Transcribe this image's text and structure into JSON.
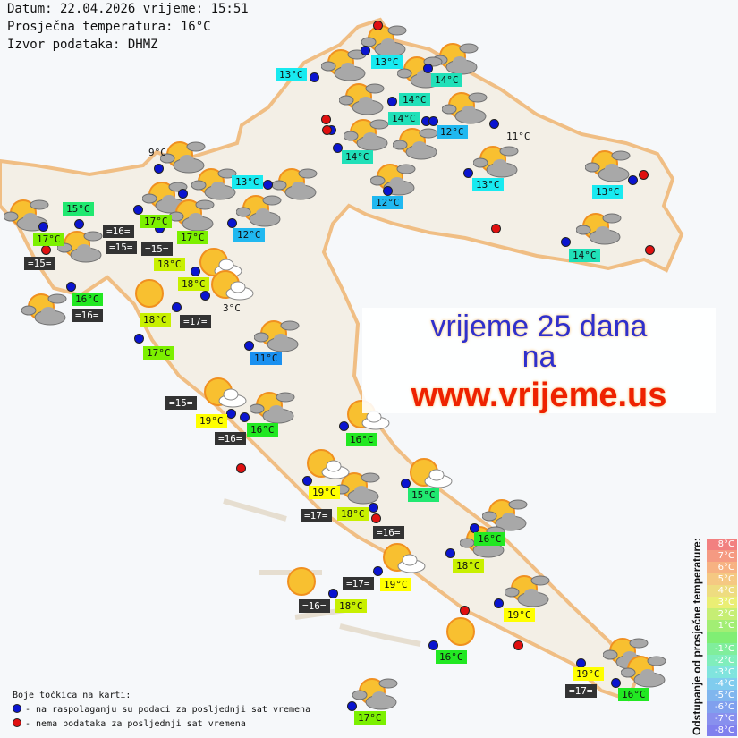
{
  "header": {
    "date_line": "Datum: 22.04.2026 vrijeme: 15:51",
    "avg_temp_line": "Prosječna temperatura: 16°C",
    "source_line": "Izvor podataka: DHMZ"
  },
  "promo": {
    "line1": "vrijeme 25 dana",
    "line2": "na",
    "line3": "www.vrijeme.us"
  },
  "legend": {
    "title": "Boje točkica na karti:",
    "blue_text": "- na raspolaganju su podaci za posljednji sat vremena",
    "red_text": "- nema podataka za posljednji sat vremena",
    "blue_color": "#0a14d0",
    "red_color": "#e01010"
  },
  "scale": {
    "title": "Odstupanje od prosječne temperature:",
    "rows": [
      {
        "label": "8°C",
        "color": "#f28080"
      },
      {
        "label": "7°C",
        "color": "#f59a82"
      },
      {
        "label": "6°C",
        "color": "#f7b282"
      },
      {
        "label": "5°C",
        "color": "#f5c882"
      },
      {
        "label": "4°C",
        "color": "#eedc80"
      },
      {
        "label": "3°C",
        "color": "#eaee74"
      },
      {
        "label": "2°C",
        "color": "#c6ee74"
      },
      {
        "label": "1°C",
        "color": "#a2ee74"
      },
      {
        "label": "",
        "color": "#80ee74"
      },
      {
        "label": "-1°C",
        "color": "#80ee9c"
      },
      {
        "label": "-2°C",
        "color": "#80eebc"
      },
      {
        "label": "-3°C",
        "color": "#80e4de"
      },
      {
        "label": "-4°C",
        "color": "#80ccee"
      },
      {
        "label": "-5°C",
        "color": "#80b6ee"
      },
      {
        "label": "-6°C",
        "color": "#80a0ee"
      },
      {
        "label": "-7°C",
        "color": "#8890ee"
      },
      {
        "label": "-8°C",
        "color": "#8080ee"
      }
    ]
  },
  "label_colors": {
    "c11": "#1a90f0",
    "c12": "#20b8f0",
    "c13": "#18eaf0",
    "c14": "#20e0b8",
    "c15": "#20e870",
    "c16": "#22e822",
    "c17": "#7cf000",
    "c18": "#c8f000",
    "c19": "#ffff00",
    "dark": "#333333"
  },
  "temperature_labels": [
    {
      "text": "13°C",
      "color": "c13"
    },
    {
      "text": "13°C",
      "color": "c13"
    },
    {
      "text": "14°C",
      "color": "c14"
    },
    {
      "text": "14°C",
      "color": "c14"
    },
    {
      "text": "14°C",
      "color": "c14"
    },
    {
      "text": "12°C",
      "color": "c12"
    },
    {
      "text": "14°C",
      "color": "c14"
    },
    {
      "text": "11°C",
      "color": "plain"
    },
    {
      "text": "13°C",
      "color": "c13"
    },
    {
      "text": "12°C",
      "color": "c12"
    },
    {
      "text": "13°C",
      "color": "c13"
    },
    {
      "text": "14°C",
      "color": "c14"
    },
    {
      "text": "13°C",
      "color": "c13"
    },
    {
      "text": "12°C",
      "color": "c12"
    },
    {
      "text": "9°C",
      "color": "plain"
    },
    {
      "text": "15°C",
      "color": "c15"
    },
    {
      "text": "17°C",
      "color": "c17"
    },
    {
      "text": "=15=",
      "color": "dark"
    },
    {
      "text": "=16=",
      "color": "dark"
    },
    {
      "text": "17°C",
      "color": "c17"
    },
    {
      "text": "18°C",
      "color": "c18"
    },
    {
      "text": "17°C",
      "color": "c17"
    },
    {
      "text": "=15=",
      "color": "dark"
    },
    {
      "text": "=15=",
      "color": "dark"
    },
    {
      "text": "18°C",
      "color": "c18"
    },
    {
      "text": "16°C",
      "color": "c16"
    },
    {
      "text": "=16=",
      "color": "dark"
    },
    {
      "text": "3°C",
      "color": "plain"
    },
    {
      "text": "18°C",
      "color": "c18"
    },
    {
      "text": "=17=",
      "color": "dark"
    },
    {
      "text": "17°C",
      "color": "c17"
    },
    {
      "text": "11°C",
      "color": "c11"
    },
    {
      "text": "=15=",
      "color": "dark"
    },
    {
      "text": "19°C",
      "color": "c19"
    },
    {
      "text": "16°C",
      "color": "c16"
    },
    {
      "text": "=16=",
      "color": "dark"
    },
    {
      "text": "16°C",
      "color": "c16"
    },
    {
      "text": "19°C",
      "color": "c19"
    },
    {
      "text": "15°C",
      "color": "c15"
    },
    {
      "text": "=17=",
      "color": "dark"
    },
    {
      "text": "18°C",
      "color": "c18"
    },
    {
      "text": "=16=",
      "color": "dark"
    },
    {
      "text": "16°C",
      "color": "c16"
    },
    {
      "text": "18°C",
      "color": "c18"
    },
    {
      "text": "=17=",
      "color": "dark"
    },
    {
      "text": "19°C",
      "color": "c19"
    },
    {
      "text": "=16=",
      "color": "dark"
    },
    {
      "text": "18°C",
      "color": "c18"
    },
    {
      "text": "19°C",
      "color": "c19"
    },
    {
      "text": "16°C",
      "color": "c16"
    },
    {
      "text": "19°C",
      "color": "c19"
    },
    {
      "text": "=17=",
      "color": "dark"
    },
    {
      "text": "16°C",
      "color": "c16"
    },
    {
      "text": "17°C",
      "color": "c17"
    }
  ],
  "weather_icons": [
    "partly-cloudy",
    "partly-cloudy",
    "partly-cloudy",
    "partly-cloudy",
    "partly-cloudy",
    "partly-cloudy",
    "partly-cloudy",
    "partly-cloudy",
    "partly-cloudy",
    "partly-cloudy",
    "partly-cloudy",
    "partly-cloudy",
    "partly-cloudy",
    "partly-cloudy",
    "partly-cloudy",
    "partly-cloudy",
    "partly-cloudy",
    "partly-cloudy",
    "partly-cloudy",
    "partly-cloudy",
    "partly-cloudy",
    "partly-cloudy",
    "partly-cloudy",
    "partly-cloudy",
    "partly-cloudy",
    "partly-cloudy",
    "partly-cloudy",
    "partly-cloudy",
    "partly-cloudy",
    "partly-cloudy",
    "sun-light-cloud",
    "sun-light-cloud",
    "sun-light-cloud",
    "sun-light-cloud",
    "sun-light-cloud",
    "sun-light-cloud",
    "sun-light-cloud",
    "sunny",
    "sunny",
    "sunny"
  ],
  "station_dots": {
    "available": 42,
    "unavailable": 11
  }
}
